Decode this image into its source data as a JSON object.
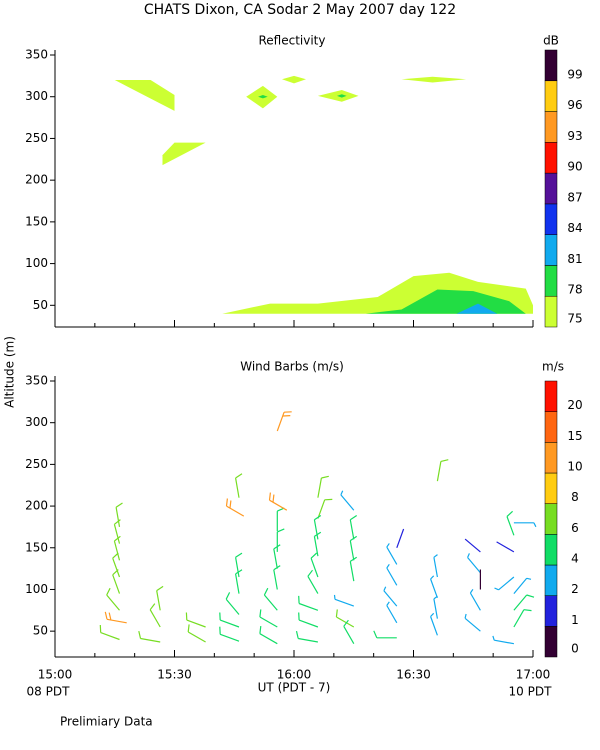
{
  "title": "CHATS Dixon, CA  Sodar   2 May 2007  day 122",
  "y_label": "Altitude (m)",
  "x_label": "UT  (PDT - 7)",
  "x_left_note": "08 PDT",
  "x_right_note": "10 PDT",
  "footnote": "Prelimiary Data",
  "chart_data": [
    {
      "type": "contour",
      "title": "Reflectivity",
      "xlim": [
        15,
        17
      ],
      "ylim": [
        24,
        350
      ],
      "xticks": [
        {
          "value": 15,
          "label": "15:00"
        },
        {
          "value": 15.5,
          "label": "15:30"
        },
        {
          "value": 16,
          "label": "16:00"
        },
        {
          "value": 16.5,
          "label": "16:30"
        },
        {
          "value": 17,
          "label": "17:00"
        }
      ],
      "xminor": [
        15.1667,
        15.3333,
        15.6667,
        15.8333,
        16.1667,
        16.3333,
        16.6667,
        16.8333
      ],
      "yticks": [
        50,
        100,
        150,
        200,
        250,
        300,
        350
      ],
      "colorbar": {
        "label": "dB",
        "ticks": [
          75,
          78,
          81,
          84,
          87,
          90,
          93,
          96,
          99
        ],
        "colors": [
          "#ccff33",
          "#22dd44",
          "#11aaee",
          "#1133ee",
          "#551199",
          "#ff1100",
          "#ff9922",
          "#ffcc11",
          "#330033"
        ]
      },
      "contours": [
        {
          "level": 75,
          "x": [
            15.25,
            15.4,
            15.5,
            15.5
          ],
          "y": [
            320,
            320,
            302,
            283
          ]
        },
        {
          "level": 75,
          "x": [
            15.45,
            15.5,
            15.63,
            15.45
          ],
          "y": [
            230,
            245,
            245,
            218
          ]
        },
        {
          "level": 75,
          "x": [
            15.8,
            15.87,
            15.93,
            15.87
          ],
          "y": [
            300,
            313,
            300,
            286
          ]
        },
        {
          "level": 75,
          "x": [
            15.95,
            16.0,
            16.05,
            16.0
          ],
          "y": [
            321,
            325,
            321,
            316
          ]
        },
        {
          "level": 75,
          "x": [
            16.1,
            16.2,
            16.27,
            16.2
          ],
          "y": [
            301,
            308,
            301,
            294
          ]
        },
        {
          "level": 75,
          "x": [
            16.45,
            16.58,
            16.72,
            16.58
          ],
          "y": [
            321,
            324,
            321,
            317
          ]
        },
        {
          "level": 75,
          "x": [
            15.7,
            15.9,
            16.1,
            16.35,
            16.5,
            16.65,
            16.77,
            16.97,
            17.0,
            17.0
          ],
          "y": [
            40,
            52,
            52,
            60,
            85,
            89,
            78,
            70,
            50,
            40
          ]
        },
        {
          "level": 78,
          "x": [
            16.3,
            16.45,
            16.6,
            16.75,
            16.9,
            16.97
          ],
          "y": [
            40,
            45,
            69,
            67,
            55,
            40
          ]
        },
        {
          "level": 78,
          "x": [
            15.85,
            15.87,
            15.89,
            15.87
          ],
          "y": [
            300,
            302,
            300,
            298
          ]
        },
        {
          "level": 78,
          "x": [
            16.18,
            16.2,
            16.22,
            16.2
          ],
          "y": [
            301,
            303,
            301,
            299
          ]
        },
        {
          "level": 81,
          "x": [
            16.68,
            16.77,
            16.85
          ],
          "y": [
            40,
            52,
            40
          ]
        }
      ]
    },
    {
      "type": "barbs",
      "title": "Wind Barbs (m/s)",
      "xlim": [
        15,
        17
      ],
      "ylim": [
        19,
        350
      ],
      "xticks": [
        {
          "value": 15,
          "label": "15:00"
        },
        {
          "value": 15.5,
          "label": "15:30"
        },
        {
          "value": 16,
          "label": "16:00"
        },
        {
          "value": 16.5,
          "label": "16:30"
        },
        {
          "value": 17,
          "label": "17:00"
        }
      ],
      "xminor": [
        15.1667,
        15.3333,
        15.6667,
        15.8333,
        16.1667,
        16.3333,
        16.6667,
        16.8333
      ],
      "yticks": [
        50,
        100,
        150,
        200,
        250,
        300,
        350
      ],
      "colorbar": {
        "label": "m/s",
        "ticks": [
          0,
          1,
          2,
          4,
          6,
          8,
          10,
          15,
          20
        ],
        "colors": [
          "#330033",
          "#2222dd",
          "#11aaee",
          "#11dd66",
          "#77dd22",
          "#ffcc11",
          "#ff9922",
          "#ff6611",
          "#ff1100"
        ]
      },
      "barbs": {
        "x": [
          15.27,
          15.27,
          15.27,
          15.27,
          15.27,
          15.27,
          15.3,
          15.27,
          15.44,
          15.44,
          15.44,
          15.63,
          15.63,
          15.77,
          15.79,
          15.77,
          15.77,
          15.77,
          15.77,
          15.77,
          15.93,
          15.93,
          15.93,
          15.93,
          15.93,
          15.93,
          15.93,
          15.93,
          15.97,
          16.1,
          16.1,
          16.1,
          16.1,
          16.1,
          16.1,
          16.1,
          16.1,
          16.1,
          16.25,
          16.25,
          16.25,
          16.25,
          16.25,
          16.25,
          16.25,
          16.43,
          16.43,
          16.43,
          16.43,
          16.43,
          16.43,
          16.6,
          16.6,
          16.6,
          16.6,
          16.6,
          16.78,
          16.78,
          16.78,
          16.78,
          16.78,
          16.92,
          16.92,
          16.92,
          16.92,
          16.92,
          16.92,
          16.92,
          16.92
        ],
        "y": [
          175,
          155,
          135,
          115,
          95,
          75,
          60,
          40,
          75,
          55,
          37,
          55,
          37,
          210,
          188,
          115,
          95,
          70,
          55,
          38,
          290,
          170,
          145,
          125,
          100,
          75,
          55,
          35,
          195,
          210,
          185,
          160,
          140,
          115,
          95,
          75,
          55,
          37,
          195,
          160,
          135,
          110,
          80,
          55,
          35,
          150,
          130,
          105,
          80,
          60,
          42,
          230,
          115,
          90,
          65,
          45,
          145,
          120,
          100,
          75,
          50,
          180,
          165,
          145,
          115,
          95,
          75,
          55,
          35
        ],
        "speed": [
          6,
          6,
          6,
          6,
          6,
          6,
          11,
          6,
          6,
          6,
          6,
          6,
          6,
          6,
          11,
          5,
          5,
          5,
          5,
          5,
          11,
          5,
          5,
          5,
          5,
          5,
          5,
          5,
          11,
          6,
          6,
          5,
          5,
          5,
          5,
          5,
          5,
          5,
          3,
          5,
          5,
          5,
          3,
          6,
          5,
          1.5,
          3,
          3,
          3,
          3,
          5,
          6,
          3,
          3,
          3,
          3,
          1.5,
          3,
          0.5,
          3,
          3,
          3,
          5,
          1.5,
          3,
          3,
          5,
          5,
          3
        ],
        "direction": [
          350,
          345,
          345,
          340,
          340,
          320,
          280,
          290,
          350,
          330,
          280,
          290,
          300,
          350,
          300,
          350,
          350,
          320,
          290,
          290,
          20,
          0,
          0,
          350,
          350,
          320,
          300,
          300,
          300,
          10,
          20,
          350,
          350,
          340,
          330,
          290,
          290,
          280,
          320,
          350,
          350,
          350,
          290,
          300,
          330,
          20,
          330,
          330,
          320,
          330,
          270,
          10,
          350,
          340,
          350,
          340,
          310,
          320,
          0,
          330,
          310,
          90,
          340,
          300,
          230,
          40,
          40,
          30,
          280
        ]
      }
    }
  ]
}
